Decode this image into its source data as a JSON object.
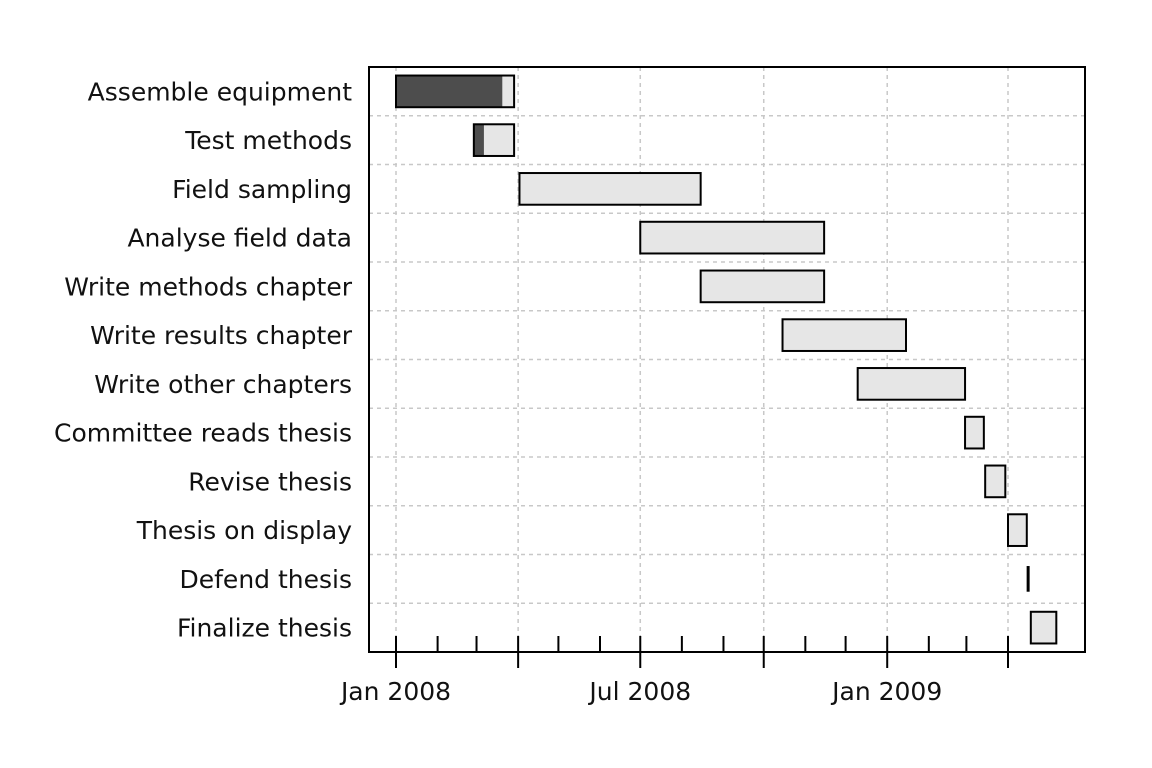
{
  "chart_data": {
    "type": "gantt",
    "title": "",
    "xlabel": "",
    "ylabel": "",
    "x_range": [
      "2007-12-10",
      "2009-04-20"
    ],
    "grid": true,
    "x_ticks": [
      {
        "date": "2008-01-01",
        "label": "Jan 2008"
      },
      {
        "date": "2008-04-01",
        "label": ""
      },
      {
        "date": "2008-07-01",
        "label": "Jul 2008"
      },
      {
        "date": "2008-10-01",
        "label": ""
      },
      {
        "date": "2009-01-01",
        "label": "Jan 2009"
      },
      {
        "date": "2009-04-01",
        "label": ""
      }
    ],
    "minor_ticks": [
      "2008-02-01",
      "2008-03-01",
      "2008-05-01",
      "2008-06-01",
      "2008-08-01",
      "2008-09-01",
      "2008-11-01",
      "2008-12-01",
      "2009-02-01",
      "2009-03-01"
    ],
    "tasks": [
      {
        "label": "Assemble equipment",
        "start": "2008-01-01",
        "end": "2008-03-29",
        "complete": 90
      },
      {
        "label": "Test methods",
        "start": "2008-02-28",
        "end": "2008-03-29",
        "complete": 25
      },
      {
        "label": "Field sampling",
        "start": "2008-04-02",
        "end": "2008-08-15",
        "complete": 0
      },
      {
        "label": "Analyse field data",
        "start": "2008-07-01",
        "end": "2008-11-15",
        "complete": 0
      },
      {
        "label": "Write methods chapter",
        "start": "2008-08-15",
        "end": "2008-11-15",
        "complete": 0
      },
      {
        "label": "Write results chapter",
        "start": "2008-10-15",
        "end": "2009-01-15",
        "complete": 0
      },
      {
        "label": "Write other chapters",
        "start": "2008-12-10",
        "end": "2009-02-28",
        "complete": 0
      },
      {
        "label": "Committee reads thesis",
        "start": "2009-02-28",
        "end": "2009-03-14",
        "complete": 0
      },
      {
        "label": "Revise thesis",
        "start": "2009-03-15",
        "end": "2009-03-30",
        "complete": 0
      },
      {
        "label": "Thesis on display",
        "start": "2009-04-01",
        "end": "2009-04-15",
        "complete": 0
      },
      {
        "label": "Defend thesis",
        "start": "2009-04-16",
        "end": "2009-04-16",
        "complete": 0
      },
      {
        "label": "Finalize thesis",
        "start": "2009-04-18",
        "end": "2009-05-07",
        "complete": 0
      }
    ],
    "colors": {
      "incomplete_fill": "#e6e6e6",
      "complete_fill": "#4d4d4d",
      "border": "#000000",
      "grid": "#c8c8c8"
    }
  }
}
